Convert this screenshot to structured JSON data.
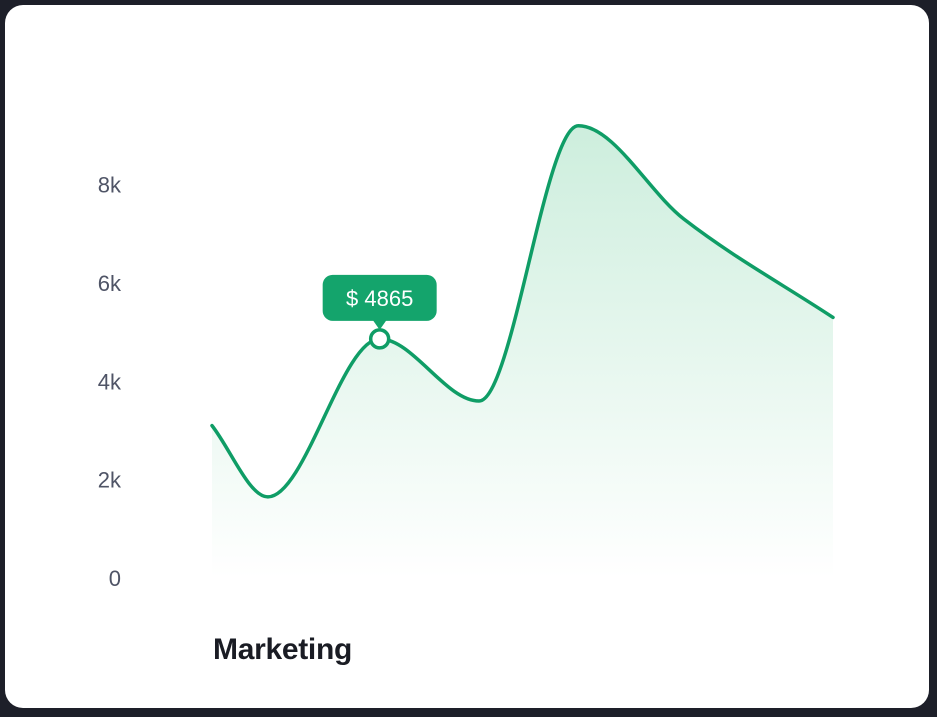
{
  "chart_data": {
    "type": "area",
    "title": "Marketing",
    "xlabel": "",
    "ylabel": "",
    "ylim": [
      0,
      9500
    ],
    "yticks": [
      {
        "value": 0,
        "label": "0"
      },
      {
        "value": 2000,
        "label": "2k"
      },
      {
        "value": 4000,
        "label": "4k"
      },
      {
        "value": 6000,
        "label": "6k"
      },
      {
        "value": 8000,
        "label": "8k"
      }
    ],
    "grid": false,
    "legend": "none",
    "series": [
      {
        "x": [
          0,
          9,
          27,
          43,
          59,
          76,
          100
        ],
        "values": [
          3100,
          1650,
          4865,
          3600,
          9200,
          7300,
          5300
        ]
      }
    ],
    "highlight": {
      "x": 27,
      "value": 4865,
      "label": "$ 4865"
    },
    "colors": {
      "line": "#0f9d66",
      "fill_top": "#cdeedd",
      "tooltip_bg": "#14a46c"
    }
  }
}
